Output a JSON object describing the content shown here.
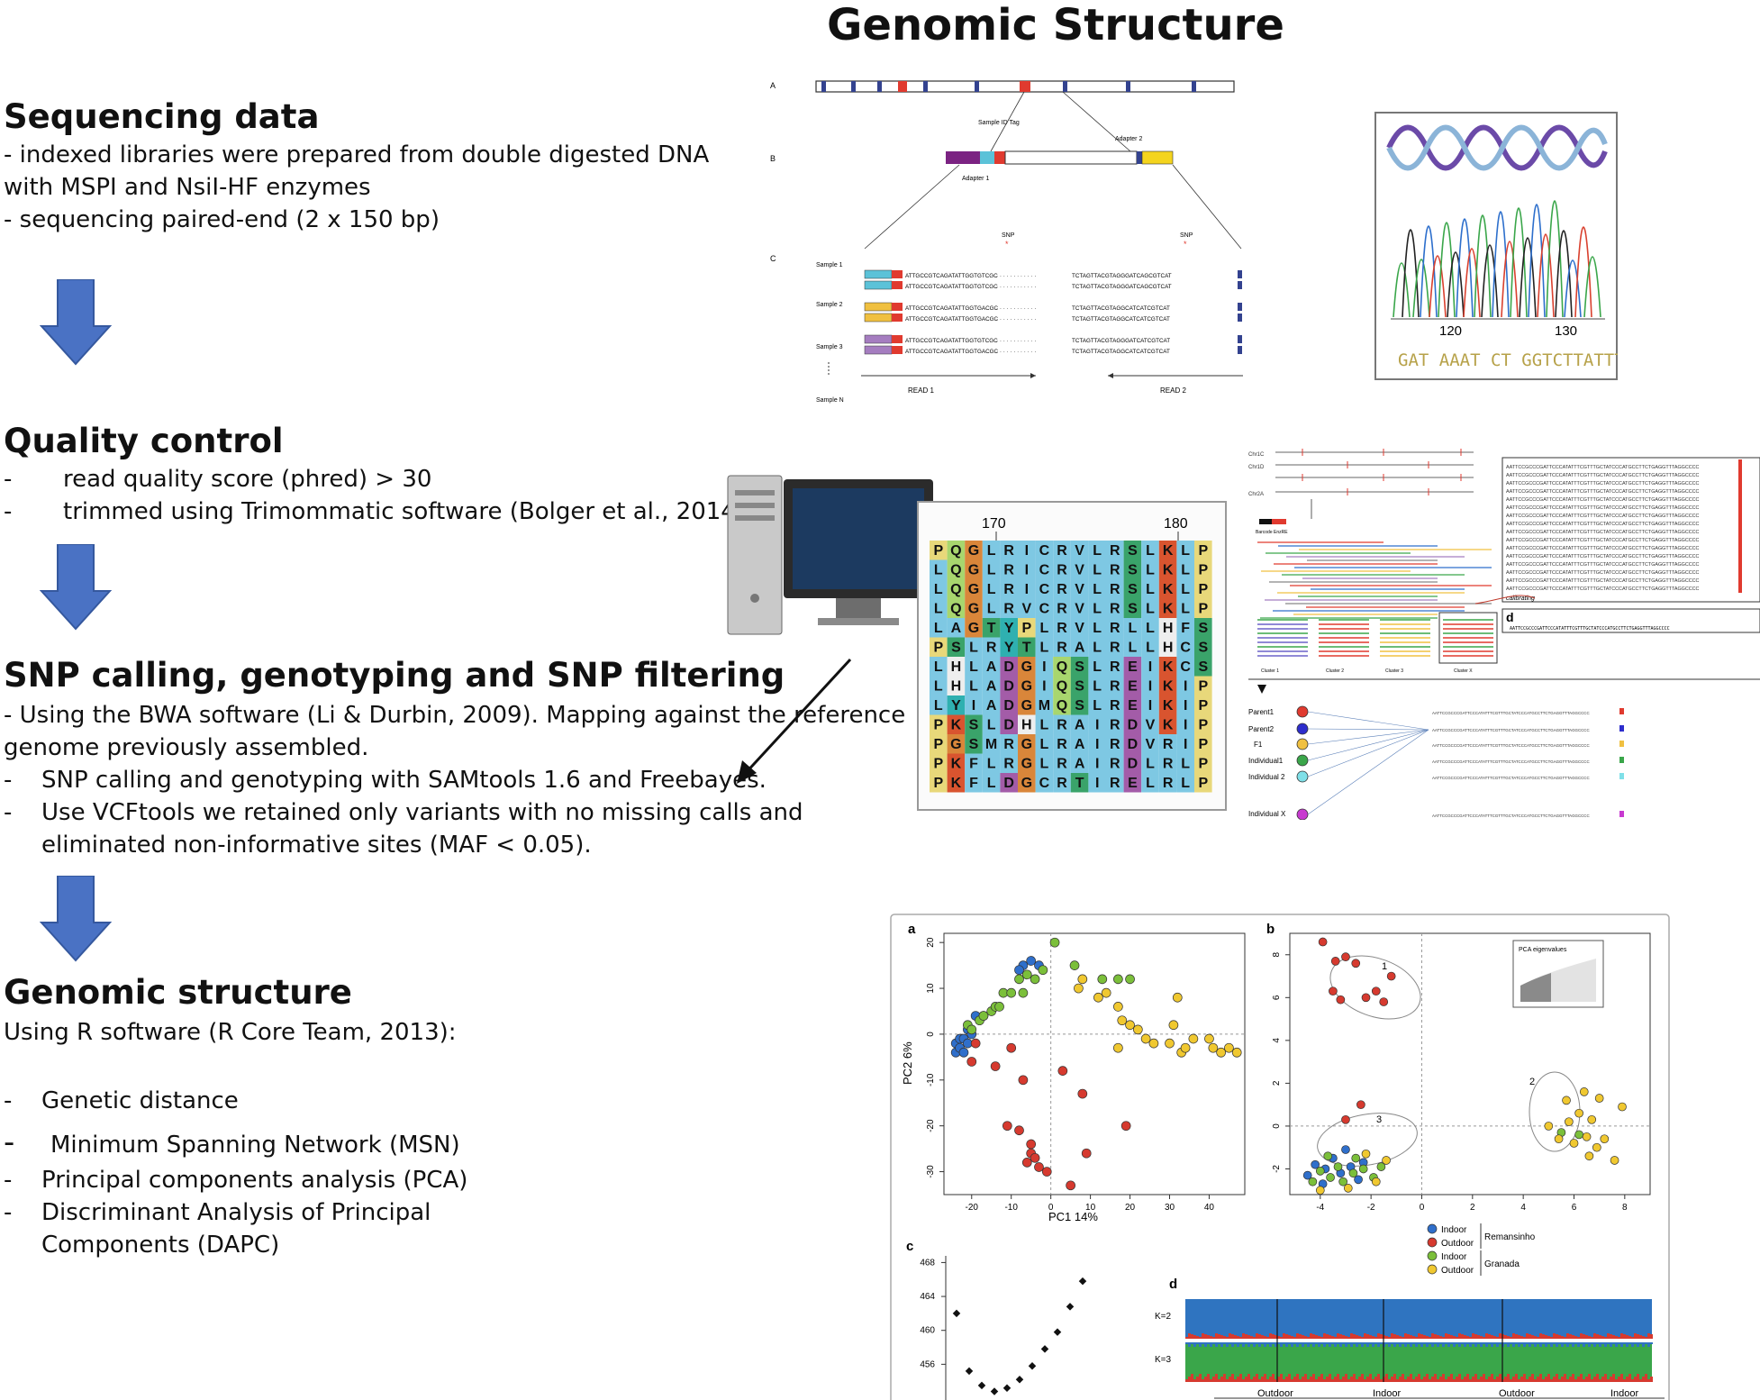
{
  "title": "Genomic Structure",
  "sections": {
    "sequencing": {
      "heading": "Sequencing data",
      "lines": [
        "- indexed libraries were prepared from double digested DNA",
        "with MSPI and NsiI-HF enzymes",
        "- sequencing paired-end (2 x 150 bp)"
      ]
    },
    "quality": {
      "heading": "Quality control",
      "items": [
        "read quality score (phred) > 30",
        "trimmed using Trimommatic software (Bolger et al., 2014)"
      ]
    },
    "snp": {
      "heading": "SNP calling, genotyping and SNP filtering",
      "lines": [
        "- Using the BWA software (Li & Durbin, 2009). Mapping against the reference",
        "genome previously assembled."
      ],
      "items": [
        "SNP calling and genotyping with SAMtools 1.6 and Freebayes.",
        "Use VCFtools we retained only variants with no missing calls and",
        "eliminated non-informative sites (MAF < 0.05)."
      ]
    },
    "genomic": {
      "heading": "Genomic structure",
      "intro": "Using R software (R Core Team, 2013):",
      "items": [
        "Genetic distance",
        "Minimum Spanning Network (MSN)",
        "Principal components analysis (PCA)",
        "Discriminant Analysis of Principal",
        "Components (DAPC)"
      ]
    }
  },
  "figure_gbs": {
    "row_labels": [
      "A",
      "B",
      "C"
    ],
    "sample_id_tag": "Sample ID Tag",
    "adapter1": "Adapter 1",
    "adapter2": "Adapter 2",
    "snp_label": "SNP",
    "samples": [
      "Sample 1",
      "Sample 2",
      "Sample 3",
      "Sample N"
    ],
    "read1": "READ 1",
    "read2": "READ 2",
    "seq_left": [
      "ATTGCCGTCAGATATTGGTGTCGC",
      "ATTGCCGTCAGATATTGGTGTCGC",
      "ATTGCCGTCAGATATTGGTGACGC",
      "ATTGCCGTCAGATATTGGTGACGC",
      "ATTGCCGTCAGATATTGGTGTCGC",
      "ATTGCCGTCAGATATTGGTGACGC"
    ],
    "seq_right": [
      "TCTAGTTACGTAGGGATCAGCGTCAT",
      "TCTAGTTACGTAGGGATCAGCGTCAT",
      "TCTAGTTACGTAGGCATCATCGTCAT",
      "TCTAGTTACGTAGGCATCATCGTCAT",
      "TCTAGTTACGTAGGGATCATCGTCAT",
      "TCTAGTTACGTAGGCATCATCGTCAT"
    ]
  },
  "figure_chromatogram": {
    "ticks": [
      "120",
      "130"
    ],
    "sequence": "GAT AAAT CT GGTCTTATTTCC"
  },
  "figure_alignment": {
    "positions": [
      "170",
      "180"
    ],
    "rows": [
      "PQGLRICRVLRSLKLP",
      "LQGLRICRVLRSLKLP",
      "LQGLRICRVLRSLKLP",
      "LQGLRVCRVLRSLKLP",
      "LAGTYPLRVLRLLHFS",
      "PSLRYTLRALRLLHCS",
      "LHLADGIQSLREIKCS",
      "LHLADGIQSLREIKIP",
      "LYIADGMQSLREIKIP",
      "PKSLDHLRAIRDVKIP",
      "PGSMRGLRAIRDVRIP",
      "PKFLRGLRAIRDLRLP",
      "PKFLDGCRTIRELRLP"
    ]
  },
  "figure_calibration": {
    "chroms": [
      "Chr1C",
      "Chr1D",
      "Chr2A",
      "Chr2A"
    ],
    "barcode": "Barcode EnzRE",
    "calibrating": "calibrating",
    "clusters": [
      "Cluster 1",
      "Cluster 2",
      "Cluster 3",
      "Cluster X"
    ],
    "panel_d": "d",
    "seq": "AATTCCGCCCGATTCCCATATTTCGTTTGCTATCCCATGCCTTCTGAGGTTTAGGCCCC",
    "individuals": [
      "Parent1",
      "Parent2",
      "F1",
      "Individual1",
      "Individual 2",
      "Individual X"
    ]
  },
  "figure_pca": {
    "panel_labels": [
      "a",
      "b",
      "c",
      "d"
    ],
    "xlabel_a": "PC1 14%",
    "ylabel_a": "PC2 6%",
    "eigen_label": "PCA eigenvalues",
    "cluster_labels": [
      "1",
      "2",
      "3"
    ],
    "legend": [
      {
        "label": "Indoor",
        "color": "#2f6fcb"
      },
      {
        "label": "Outdoor",
        "color": "#d63a2f"
      },
      {
        "label": "Indoor",
        "color": "#7bbf3a"
      },
      {
        "label": "Outdoor",
        "color": "#f0c830"
      }
    ],
    "legend_groups": [
      "Remansinho",
      "Granada"
    ],
    "k_labels": [
      "K=2",
      "K=3"
    ],
    "structure_groups": [
      "Outdoor",
      "Indoor",
      "Outdoor",
      "Indoor"
    ],
    "c_ticks": [
      "468",
      "464",
      "460",
      "456"
    ]
  },
  "chart_data": [
    {
      "type": "scatter",
      "panel": "a",
      "xlabel": "PC1 14%",
      "ylabel": "PC2 6%",
      "xlim": [
        -27,
        49
      ],
      "ylim": [
        -35,
        22
      ],
      "xticks": [
        -20,
        -10,
        0,
        10,
        20,
        30,
        40
      ],
      "yticks": [
        20,
        10,
        0,
        -10,
        -20,
        -30
      ],
      "series": [
        {
          "name": "Indoor Remansinho",
          "color": "#2f6fcb",
          "points": [
            [
              -24,
              -2
            ],
            [
              -24,
              -4
            ],
            [
              -23,
              -1
            ],
            [
              -23,
              -3
            ],
            [
              -22,
              -1
            ],
            [
              -22,
              -4
            ],
            [
              -21,
              -2
            ],
            [
              -21,
              1
            ],
            [
              -20,
              0
            ],
            [
              -19,
              4
            ],
            [
              -17,
              4
            ],
            [
              -7,
              15
            ],
            [
              -5,
              16
            ],
            [
              -3,
              15
            ],
            [
              -8,
              14
            ]
          ]
        },
        {
          "name": "Outdoor Remansinho",
          "color": "#d63a2f",
          "points": [
            [
              -19,
              -2
            ],
            [
              -14,
              -7
            ],
            [
              -10,
              -3
            ],
            [
              -20,
              -6
            ],
            [
              -7,
              -10
            ],
            [
              -11,
              -20
            ],
            [
              -8,
              -21
            ],
            [
              -5,
              -24
            ],
            [
              -5,
              -26
            ],
            [
              -6,
              -28
            ],
            [
              -4,
              -27
            ],
            [
              -3,
              -29
            ],
            [
              -1,
              -30
            ],
            [
              5,
              -33
            ],
            [
              9,
              -26
            ],
            [
              19,
              -20
            ],
            [
              3,
              -8
            ],
            [
              8,
              -13
            ]
          ]
        },
        {
          "name": "Indoor Granada",
          "color": "#7bbf3a",
          "points": [
            [
              -21,
              2
            ],
            [
              -20,
              1
            ],
            [
              -18,
              3
            ],
            [
              -17,
              4
            ],
            [
              -15,
              5
            ],
            [
              -14,
              6
            ],
            [
              -13,
              6
            ],
            [
              -12,
              9
            ],
            [
              -10,
              9
            ],
            [
              -8,
              12
            ],
            [
              -6,
              13
            ],
            [
              -4,
              12
            ],
            [
              -2,
              14
            ],
            [
              1,
              20
            ],
            [
              6,
              15
            ],
            [
              13,
              12
            ],
            [
              17,
              12
            ],
            [
              20,
              12
            ],
            [
              -7,
              9
            ]
          ]
        },
        {
          "name": "Outdoor Granada",
          "color": "#f0c830",
          "points": [
            [
              7,
              10
            ],
            [
              8,
              12
            ],
            [
              12,
              8
            ],
            [
              14,
              9
            ],
            [
              17,
              6
            ],
            [
              18,
              3
            ],
            [
              20,
              2
            ],
            [
              22,
              1
            ],
            [
              24,
              -1
            ],
            [
              26,
              -2
            ],
            [
              30,
              -2
            ],
            [
              31,
              2
            ],
            [
              32,
              8
            ],
            [
              36,
              -1
            ],
            [
              40,
              -1
            ],
            [
              41,
              -3
            ],
            [
              43,
              -4
            ],
            [
              45,
              -3
            ],
            [
              47,
              -4
            ],
            [
              33,
              -4
            ],
            [
              34,
              -3
            ],
            [
              17,
              -3
            ]
          ]
        }
      ]
    },
    {
      "type": "scatter",
      "panel": "b",
      "xlim": [
        -5.2,
        9
      ],
      "ylim": [
        -3.2,
        9
      ],
      "xticks": [
        -4,
        -2,
        0,
        2,
        4,
        6,
        8
      ],
      "yticks": [
        8,
        6,
        4,
        2,
        0,
        -2
      ],
      "series": [
        {
          "name": "Indoor Remansinho",
          "color": "#2f6fcb",
          "points": [
            [
              -4.5,
              -2.3
            ],
            [
              -4.2,
              -1.8
            ],
            [
              -3.8,
              -2.0
            ],
            [
              -3.5,
              -1.5
            ],
            [
              -3.2,
              -2.2
            ],
            [
              -2.8,
              -1.9
            ],
            [
              -2.5,
              -2.5
            ],
            [
              -3.9,
              -2.7
            ],
            [
              -3.0,
              -1.1
            ],
            [
              -2.3,
              -1.7
            ]
          ]
        },
        {
          "name": "Outdoor Remansinho",
          "color": "#d63a2f",
          "points": [
            [
              -3.9,
              8.6
            ],
            [
              -3.4,
              7.7
            ],
            [
              -3.0,
              7.9
            ],
            [
              -2.6,
              7.6
            ],
            [
              -3.5,
              6.3
            ],
            [
              -3.2,
              5.9
            ],
            [
              -2.2,
              6.0
            ],
            [
              -1.8,
              6.3
            ],
            [
              -1.5,
              5.8
            ],
            [
              -2.4,
              1.0
            ],
            [
              -3.0,
              0.3
            ],
            [
              -1.2,
              7.0
            ]
          ]
        },
        {
          "name": "Indoor Granada",
          "color": "#7bbf3a",
          "points": [
            [
              -4.3,
              -2.6
            ],
            [
              -4.0,
              -2.1
            ],
            [
              -3.6,
              -2.4
            ],
            [
              -3.3,
              -1.9
            ],
            [
              -3.1,
              -2.6
            ],
            [
              -2.7,
              -2.2
            ],
            [
              -2.3,
              -2.0
            ],
            [
              -1.9,
              -2.4
            ],
            [
              -1.6,
              -1.9
            ],
            [
              -3.7,
              -1.4
            ],
            [
              -2.6,
              -1.5
            ],
            [
              5.5,
              -0.3
            ],
            [
              6.2,
              -0.4
            ]
          ]
        },
        {
          "name": "Outdoor Granada",
          "color": "#f0c830",
          "points": [
            [
              5.0,
              0.0
            ],
            [
              5.4,
              -0.6
            ],
            [
              5.8,
              0.2
            ],
            [
              6.0,
              -0.8
            ],
            [
              6.2,
              0.6
            ],
            [
              6.5,
              -0.5
            ],
            [
              6.7,
              0.3
            ],
            [
              6.9,
              -1.0
            ],
            [
              7.0,
              1.3
            ],
            [
              7.2,
              -0.6
            ],
            [
              5.7,
              1.2
            ],
            [
              6.4,
              1.6
            ],
            [
              6.6,
              -1.4
            ],
            [
              7.9,
              0.9
            ],
            [
              7.6,
              -1.6
            ],
            [
              -2.2,
              -1.3
            ],
            [
              -1.8,
              -2.6
            ],
            [
              -2.9,
              -2.9
            ],
            [
              -1.4,
              -1.6
            ],
            [
              -4.0,
              -3.0
            ]
          ]
        }
      ]
    },
    {
      "type": "scatter",
      "panel": "c",
      "ylim": [
        452,
        469
      ],
      "yticks": [
        468,
        464,
        460,
        456
      ],
      "series": [
        {
          "name": "",
          "color": "#111111",
          "points": [
            [
              1,
              462
            ],
            [
              2,
              455.2
            ],
            [
              3,
              453.5
            ],
            [
              4,
              452.8
            ],
            [
              5,
              453.2
            ],
            [
              6,
              454.2
            ],
            [
              7,
              455.8
            ],
            [
              8,
              457.8
            ],
            [
              9,
              459.8
            ],
            [
              10,
              462.8
            ],
            [
              11,
              465.8
            ]
          ]
        }
      ]
    }
  ]
}
